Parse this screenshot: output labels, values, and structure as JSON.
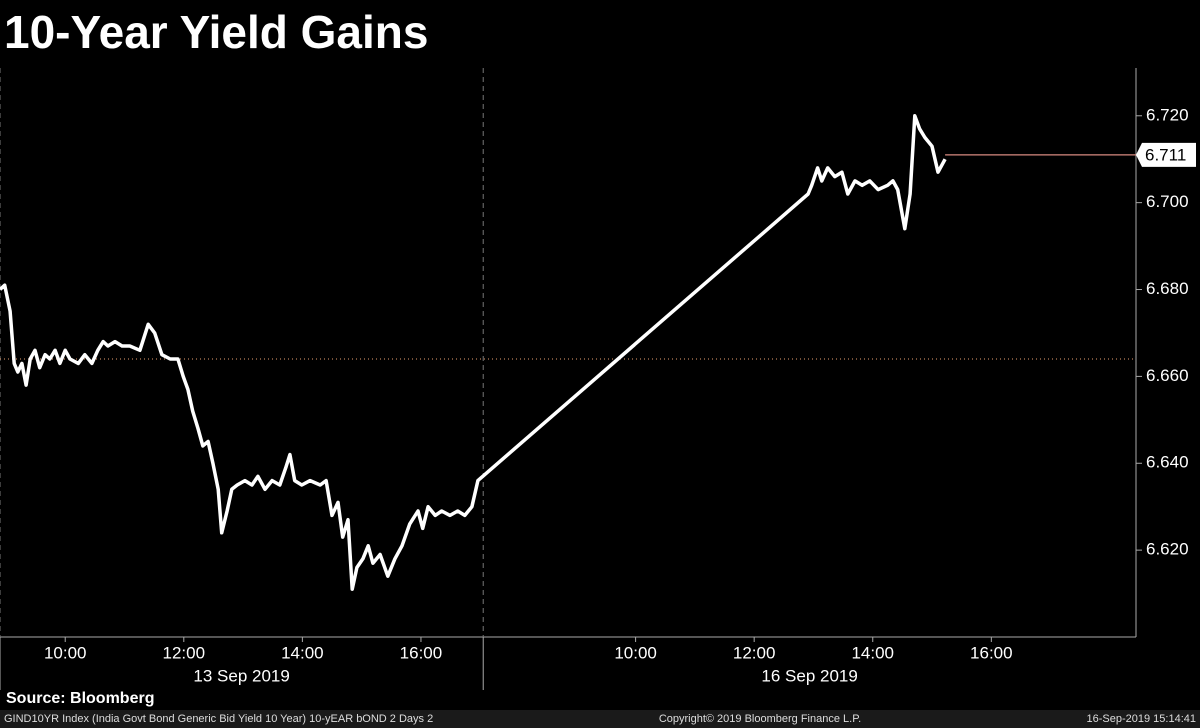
{
  "chart_data": {
    "type": "line",
    "title": "10-Year Yield Gains",
    "source": "Source: Bloomberg",
    "color": "#ffffff",
    "x": [
      8.9,
      8.98,
      9.07,
      9.14,
      9.2,
      9.27,
      9.34,
      9.41,
      9.49,
      9.57,
      9.66,
      9.74,
      9.83,
      9.91,
      10.0,
      10.08,
      10.22,
      10.33,
      10.45,
      10.55,
      10.64,
      10.72,
      10.84,
      10.96,
      11.09,
      11.26,
      11.4,
      11.51,
      11.63,
      11.77,
      11.9,
      11.99,
      12.07,
      12.15,
      12.24,
      12.32,
      12.41,
      12.49,
      12.58,
      12.64,
      12.73,
      12.81,
      12.9,
      13.03,
      13.15,
      13.25,
      13.37,
      13.49,
      13.62,
      13.72,
      13.79,
      13.87,
      13.99,
      14.13,
      14.3,
      14.4,
      14.5,
      14.6,
      14.68,
      14.77,
      14.84,
      14.92,
      15.02,
      15.11,
      15.19,
      15.31,
      15.44,
      15.56,
      15.68,
      15.81,
      15.95,
      16.03,
      16.12,
      16.24,
      16.35,
      16.49,
      16.62,
      16.74,
      16.86,
      16.96,
      22.53,
      22.59,
      22.69,
      22.76,
      22.86,
      22.98,
      23.1,
      23.2,
      23.32,
      23.44,
      23.57,
      23.71,
      23.87,
      23.96,
      24.04,
      24.16,
      24.25,
      24.33,
      24.41,
      24.5,
      24.62,
      24.72,
      24.84
    ],
    "values": [
      6.68,
      6.681,
      6.675,
      6.663,
      6.661,
      6.663,
      6.658,
      6.664,
      6.666,
      6.662,
      6.665,
      6.664,
      6.666,
      6.663,
      6.666,
      6.664,
      6.663,
      6.665,
      6.663,
      6.666,
      6.668,
      6.667,
      6.668,
      6.667,
      6.667,
      6.666,
      6.672,
      6.67,
      6.665,
      6.664,
      6.664,
      6.66,
      6.657,
      6.652,
      6.648,
      6.644,
      6.645,
      6.64,
      6.634,
      6.624,
      6.629,
      6.634,
      6.635,
      6.636,
      6.635,
      6.637,
      6.634,
      6.636,
      6.635,
      6.639,
      6.642,
      6.636,
      6.635,
      6.636,
      6.635,
      6.636,
      6.628,
      6.631,
      6.623,
      6.627,
      6.611,
      6.616,
      6.618,
      6.621,
      6.617,
      6.619,
      6.614,
      6.618,
      6.621,
      6.626,
      6.629,
      6.625,
      6.63,
      6.628,
      6.629,
      6.628,
      6.629,
      6.628,
      6.63,
      6.636,
      6.702,
      6.704,
      6.708,
      6.705,
      6.708,
      6.706,
      6.707,
      6.702,
      6.705,
      6.704,
      6.705,
      6.703,
      6.704,
      6.705,
      6.703,
      6.694,
      6.702,
      6.72,
      6.717,
      6.715,
      6.713,
      6.707,
      6.71
    ],
    "xlim": [
      8.9,
      28.06
    ],
    "xticks": [
      {
        "value": 10,
        "label": "10:00"
      },
      {
        "value": 12,
        "label": "12:00"
      },
      {
        "value": 14,
        "label": "14:00"
      },
      {
        "value": 16,
        "label": "16:00"
      },
      {
        "value": 19.62,
        "label": "10:00"
      },
      {
        "value": 21.62,
        "label": "12:00"
      },
      {
        "value": 23.62,
        "label": "14:00"
      },
      {
        "value": 25.62,
        "label": "16:00"
      }
    ],
    "x_groups": [
      {
        "label": "13 Sep 2019",
        "range": [
          8.9,
          17.05
        ]
      },
      {
        "label": "16 Sep 2019",
        "range": [
          17.05,
          28.06
        ]
      }
    ],
    "ylim": [
      6.6,
      6.731
    ],
    "yticks": [
      {
        "value": 6.62,
        "label": "6.620"
      },
      {
        "value": 6.64,
        "label": "6.640"
      },
      {
        "value": 6.66,
        "label": "6.660"
      },
      {
        "value": 6.68,
        "label": "6.680"
      },
      {
        "value": 6.7,
        "label": "6.700"
      },
      {
        "value": 6.72,
        "label": "6.720"
      }
    ],
    "reference_line": 6.664,
    "last_value": 6.711
  },
  "footer": {
    "ticker": "GIND10YR Index (India Govt Bond Generic Bid Yield 10 Year) 10-yEAR bOND 2 Days 2",
    "copyright": "Copyright© 2019 Bloomberg Finance L.P.",
    "timestamp": "16-Sep-2019 15:14:41"
  }
}
